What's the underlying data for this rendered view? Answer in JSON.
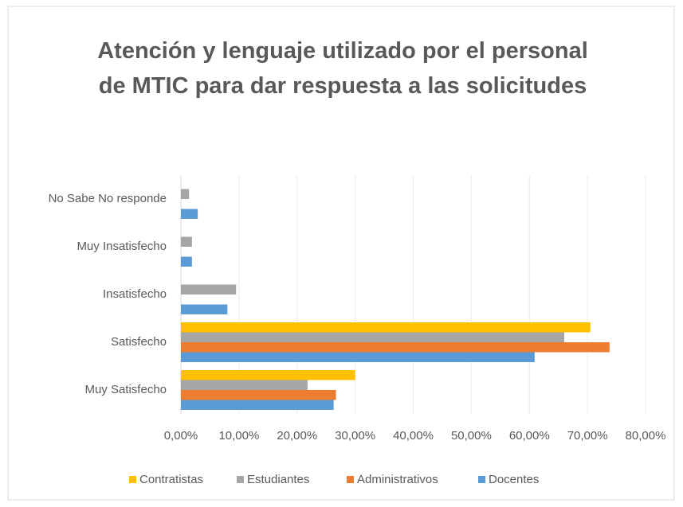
{
  "chart_data": {
    "type": "barh",
    "title": "Atención y lenguaje utilizado por el personal de MTIC para dar respuesta a las solicitudes",
    "categories": [
      "Muy Satisfecho",
      "Satisfecho",
      "Insatisfecho",
      "Muy Insatisfecho",
      "No Sabe No responde"
    ],
    "series": [
      {
        "name": "Contratistas",
        "color": "#ffc000",
        "values": [
          30.0,
          70.5,
          0,
          0,
          0
        ]
      },
      {
        "name": "Estudiantes",
        "color": "#a5a5a5",
        "values": [
          21.8,
          66.0,
          9.5,
          1.9,
          1.4
        ]
      },
      {
        "name": "Administrativos",
        "color": "#ed7d31",
        "values": [
          26.7,
          73.8,
          0,
          0,
          0
        ]
      },
      {
        "name": "Docentes",
        "color": "#5b9bd5",
        "values": [
          26.3,
          60.9,
          8.0,
          1.9,
          2.9
        ]
      }
    ],
    "xlim": [
      0,
      80
    ],
    "xticks": [
      {
        "value": 0,
        "label": "0,00%"
      },
      {
        "value": 10,
        "label": "10,00%"
      },
      {
        "value": 20,
        "label": "20,00%"
      },
      {
        "value": 30,
        "label": "30,00%"
      },
      {
        "value": 40,
        "label": "40,00%"
      },
      {
        "value": 50,
        "label": "50,00%"
      },
      {
        "value": 60,
        "label": "60,00%"
      },
      {
        "value": 70,
        "label": "70,00%"
      },
      {
        "value": 80,
        "label": "80,00%"
      }
    ],
    "grid": true,
    "legend": "bottom"
  }
}
